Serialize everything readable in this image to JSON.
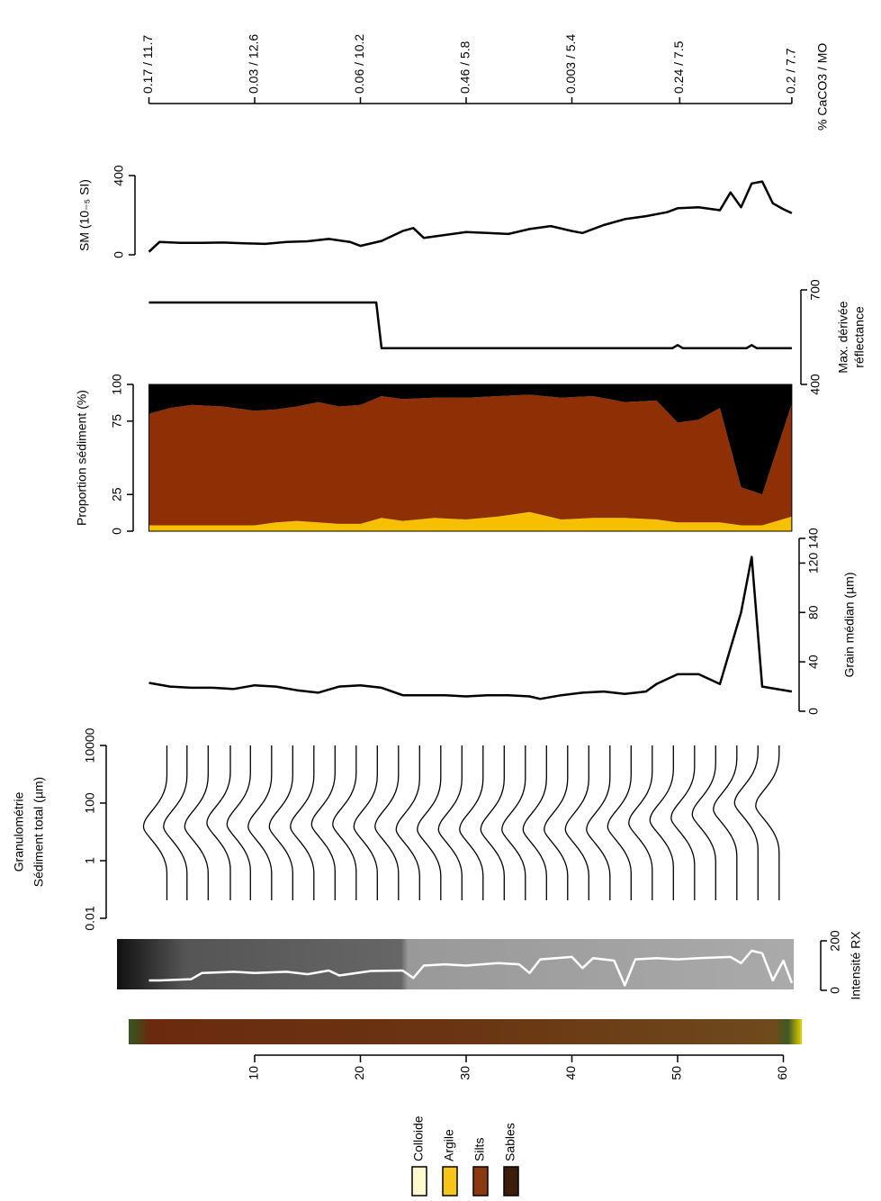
{
  "chart_data": [
    {
      "type": "scale",
      "title": "% CaCO3 / MO",
      "labels": [
        "0.17 / 11.7",
        "0.03 / 12.6",
        "0.06 / 10.2",
        "0.46 / 5.8",
        "0.003 / 5.4",
        "0.24 / 7.5",
        "0.2 / 7.7"
      ],
      "x": [
        0,
        10,
        20,
        30,
        40,
        50.2,
        60.8
      ]
    },
    {
      "type": "line",
      "ylabel": [
        "SM (10₋₅ SI)"
      ],
      "color": "#000000",
      "x": [
        0,
        1,
        3,
        5,
        7,
        9,
        11,
        13,
        15,
        17,
        19,
        20,
        22,
        24,
        25,
        26,
        28,
        30,
        32,
        34,
        36,
        38,
        40,
        41,
        43,
        45,
        47,
        49,
        50,
        52,
        54,
        55,
        56,
        57,
        58,
        59,
        60,
        60.8
      ],
      "values": [
        15,
        65,
        60,
        60,
        62,
        58,
        55,
        65,
        68,
        80,
        65,
        45,
        70,
        120,
        135,
        85,
        100,
        115,
        110,
        105,
        130,
        145,
        120,
        110,
        150,
        180,
        195,
        215,
        235,
        240,
        225,
        315,
        240,
        360,
        370,
        260,
        230,
        210
      ],
      "ylim": [
        0,
        400
      ],
      "yticks": [
        0,
        400
      ]
    },
    {
      "type": "line",
      "ylabel": [
        "Max. dérivée",
        "réflectance"
      ],
      "color": "#000000",
      "x": [
        0,
        21.5,
        22,
        49.5,
        50,
        50.5,
        56.5,
        57,
        57.5,
        60.8
      ],
      "values": [
        660,
        660,
        515,
        515,
        525,
        515,
        515,
        525,
        515,
        515
      ],
      "ylim": [
        400,
        700
      ],
      "yticks": [
        400,
        700
      ]
    },
    {
      "type": "area",
      "ylabel": [
        "Proportion sédiment (%)"
      ],
      "x": [
        0,
        2,
        4,
        7,
        10,
        12,
        14,
        16,
        18,
        20,
        22,
        24,
        27,
        30,
        33,
        36,
        39,
        42,
        45,
        48,
        50,
        52,
        54,
        56,
        58,
        60.8
      ],
      "series": [
        {
          "name": "Argile",
          "color": "#f6c000",
          "values": [
            4,
            4,
            4,
            4,
            4,
            6,
            7,
            6,
            5,
            5,
            9,
            7,
            9,
            8,
            10,
            13,
            8,
            9,
            9,
            8,
            6,
            6,
            6,
            4,
            4,
            10
          ]
        },
        {
          "name": "Silts",
          "color": "#8e2f06",
          "values": [
            76,
            80,
            82,
            81,
            78,
            77,
            78,
            82,
            80,
            81,
            83,
            83,
            82,
            83,
            82,
            80,
            83,
            83,
            79,
            81,
            68,
            70,
            78,
            26,
            21,
            77
          ]
        },
        {
          "name": "Sables",
          "color": "#000000",
          "values": [
            20,
            16,
            14,
            15,
            18,
            17,
            15,
            12,
            15,
            14,
            8,
            10,
            9,
            9,
            8,
            7,
            9,
            8,
            12,
            11,
            26,
            24,
            16,
            70,
            75,
            13
          ]
        }
      ],
      "ylim": [
        0,
        100
      ],
      "yticks": [
        0,
        25,
        75,
        100
      ]
    },
    {
      "type": "line",
      "ylabel": [
        "Grain médian (µm)"
      ],
      "color": "#000000",
      "x": [
        0,
        2,
        4,
        6,
        8,
        10,
        12,
        14,
        16,
        18,
        20,
        22,
        24,
        26,
        28,
        30,
        32,
        34,
        36,
        37,
        39,
        41,
        43,
        45,
        47,
        48,
        50,
        52,
        54,
        56,
        57,
        58,
        60.8
      ],
      "values": [
        23,
        20,
        19,
        19,
        18,
        21,
        20,
        17,
        15,
        20,
        21,
        19,
        13,
        13,
        13,
        12,
        13,
        13,
        12,
        10,
        13,
        15,
        16,
        14,
        16,
        22,
        30,
        30,
        22,
        80,
        125,
        20,
        16
      ],
      "ylim": [
        0,
        140
      ],
      "yticks": [
        0,
        40,
        80,
        120,
        140
      ]
    },
    {
      "type": "curves",
      "ylabel": [
        "Granulométrie",
        "Sédiment total (µm)"
      ],
      "log": true,
      "color": "#000000",
      "x": [
        1.7,
        3.6,
        5.6,
        7.7,
        9.6,
        11.6,
        13.6,
        15.6,
        17.6,
        19.6,
        21.6,
        23.6,
        25.6,
        27.6,
        29.6,
        31.6,
        33.6,
        35.6,
        37.6,
        39.6,
        41.6,
        43.6,
        45.6,
        47.6,
        49.6,
        51.6,
        53.6,
        55.6,
        57.6,
        59.6
      ],
      "values": [
        15,
        15,
        15,
        20,
        18,
        15,
        15,
        15,
        18,
        18,
        15,
        15,
        12,
        12,
        12,
        12,
        12,
        12,
        12,
        12,
        12,
        12,
        15,
        20,
        25,
        30,
        40,
        60,
        100,
        80
      ],
      "ylim": [
        0.01,
        10000
      ],
      "yticks": [
        0.01,
        1,
        100,
        10000
      ]
    },
    {
      "type": "line",
      "ylabel": [
        "Intensité RX"
      ],
      "color": "#ffffff",
      "x": [
        0,
        1,
        4,
        5,
        8,
        10,
        13,
        15,
        17,
        18,
        21,
        24,
        25,
        26,
        28,
        30,
        33,
        35,
        36,
        37,
        40,
        41,
        42,
        44,
        45,
        46,
        48,
        50,
        52,
        55,
        56,
        57,
        58,
        59,
        60,
        60.8
      ],
      "values": [
        40,
        40,
        45,
        70,
        75,
        70,
        75,
        65,
        80,
        60,
        78,
        80,
        50,
        100,
        105,
        100,
        110,
        105,
        70,
        125,
        135,
        90,
        130,
        120,
        20,
        125,
        130,
        125,
        130,
        135,
        110,
        160,
        150,
        40,
        120,
        30
      ],
      "ylim": [
        0,
        200
      ],
      "yticks": [
        0,
        200
      ]
    },
    {
      "type": "axis",
      "xlim": [
        0,
        61
      ],
      "xticks": [
        10,
        20,
        30,
        40,
        50,
        60
      ]
    },
    {
      "type": "legend",
      "series": [
        {
          "name": "Colloide",
          "color": "#fffbcc"
        },
        {
          "name": "Argile",
          "color": "#f5c518"
        },
        {
          "name": "Silts",
          "color": "#8b3a0f"
        },
        {
          "name": "Sables",
          "color": "#3b1d0a"
        }
      ]
    }
  ]
}
